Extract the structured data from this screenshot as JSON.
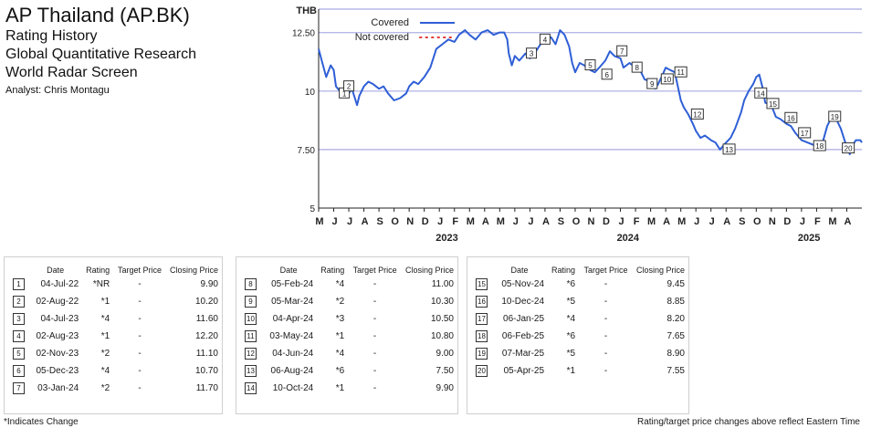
{
  "header": {
    "company": "AP Thailand (AP.BK)",
    "line1": "Rating History",
    "line2": "Global Quantitative Research",
    "line3": "World Radar Screen",
    "analyst": "Analyst: Chris Montagu"
  },
  "chart_data": {
    "type": "line",
    "y_unit_label": "THB",
    "ylim": [
      5,
      13.5
    ],
    "yticks": [
      "5",
      "7.50",
      "10",
      "12.50"
    ],
    "x_months": [
      "M",
      "J",
      "J",
      "A",
      "S",
      "O",
      "N",
      "D",
      "J",
      "F",
      "M",
      "A",
      "M",
      "J",
      "J",
      "A",
      "S",
      "O",
      "N",
      "D",
      "J",
      "F",
      "M",
      "A",
      "M",
      "J",
      "J",
      "A",
      "S",
      "O",
      "N",
      "D",
      "J",
      "F",
      "M",
      "A"
    ],
    "x_years": [
      {
        "label": "2023",
        "month_index": 8
      },
      {
        "label": "2024",
        "month_index": 20
      },
      {
        "label": "2025",
        "month_index": 32
      }
    ],
    "start_date": "2022-05-01",
    "legend": {
      "covered": "Covered",
      "not_covered": "Not covered"
    },
    "colors": {
      "line": "#2f5fd6",
      "not_covered": "#e23b3b",
      "grid": "#b7b9e8"
    },
    "series": [
      {
        "name": "Covered",
        "points": [
          [
            0,
            11.8
          ],
          [
            0.25,
            11.2
          ],
          [
            0.5,
            10.6
          ],
          [
            0.8,
            11.1
          ],
          [
            1.0,
            10.9
          ],
          [
            1.15,
            10.2
          ],
          [
            1.4,
            10.0
          ],
          [
            1.7,
            9.9
          ],
          [
            2.0,
            9.9
          ],
          [
            2.2,
            10.1
          ],
          [
            2.4,
            9.7
          ],
          [
            2.55,
            9.4
          ],
          [
            2.7,
            9.8
          ],
          [
            3.0,
            10.2
          ],
          [
            3.3,
            10.4
          ],
          [
            3.6,
            10.3
          ],
          [
            4.0,
            10.1
          ],
          [
            4.3,
            10.2
          ],
          [
            4.6,
            9.9
          ],
          [
            5.0,
            9.6
          ],
          [
            5.4,
            9.7
          ],
          [
            5.8,
            9.9
          ],
          [
            6.0,
            10.2
          ],
          [
            6.3,
            10.4
          ],
          [
            6.6,
            10.3
          ],
          [
            7.0,
            10.6
          ],
          [
            7.4,
            11.0
          ],
          [
            7.8,
            11.8
          ],
          [
            8.2,
            12.0
          ],
          [
            8.6,
            12.2
          ],
          [
            9.0,
            12.1
          ],
          [
            9.3,
            12.4
          ],
          [
            9.7,
            12.6
          ],
          [
            10.0,
            12.4
          ],
          [
            10.4,
            12.2
          ],
          [
            10.8,
            12.5
          ],
          [
            11.2,
            12.6
          ],
          [
            11.6,
            12.4
          ],
          [
            12.0,
            12.5
          ],
          [
            12.3,
            12.5
          ],
          [
            12.5,
            12.2
          ],
          [
            12.6,
            11.6
          ],
          [
            12.8,
            11.1
          ],
          [
            13.0,
            11.5
          ],
          [
            13.3,
            11.3
          ],
          [
            13.7,
            11.6
          ],
          [
            14.0,
            11.4
          ],
          [
            14.3,
            11.6
          ],
          [
            14.5,
            11.8
          ],
          [
            14.7,
            12.0
          ],
          [
            15.0,
            12.2
          ],
          [
            15.4,
            12.3
          ],
          [
            15.7,
            12.0
          ],
          [
            16.0,
            12.6
          ],
          [
            16.3,
            12.4
          ],
          [
            16.6,
            11.9
          ],
          [
            16.8,
            11.2
          ],
          [
            17.0,
            10.8
          ],
          [
            17.3,
            11.2
          ],
          [
            17.6,
            11.1
          ],
          [
            18.0,
            10.9
          ],
          [
            18.3,
            10.8
          ],
          [
            18.6,
            11.0
          ],
          [
            19.0,
            11.3
          ],
          [
            19.3,
            11.7
          ],
          [
            19.6,
            11.5
          ],
          [
            20.0,
            11.4
          ],
          [
            20.2,
            11.0
          ],
          [
            20.6,
            11.2
          ],
          [
            21.0,
            11.0
          ],
          [
            21.3,
            10.9
          ],
          [
            21.6,
            10.5
          ],
          [
            22.0,
            10.4
          ],
          [
            22.3,
            10.1
          ],
          [
            22.5,
            10.3
          ],
          [
            22.8,
            10.7
          ],
          [
            23.0,
            11.0
          ],
          [
            23.3,
            10.9
          ],
          [
            23.6,
            10.8
          ],
          [
            23.8,
            10.2
          ],
          [
            24.0,
            9.6
          ],
          [
            24.2,
            9.3
          ],
          [
            24.5,
            9.0
          ],
          [
            24.8,
            8.6
          ],
          [
            25.0,
            8.3
          ],
          [
            25.3,
            8.0
          ],
          [
            25.6,
            8.1
          ],
          [
            26.0,
            7.9
          ],
          [
            26.3,
            7.8
          ],
          [
            26.6,
            7.5
          ],
          [
            27.0,
            7.8
          ],
          [
            27.3,
            8.0
          ],
          [
            27.6,
            8.4
          ],
          [
            28.0,
            9.1
          ],
          [
            28.2,
            9.6
          ],
          [
            28.5,
            10.0
          ],
          [
            28.8,
            10.3
          ],
          [
            29.0,
            10.6
          ],
          [
            29.2,
            10.7
          ],
          [
            29.4,
            10.2
          ],
          [
            29.6,
            9.5
          ],
          [
            30.0,
            9.4
          ],
          [
            30.3,
            8.9
          ],
          [
            30.6,
            8.8
          ],
          [
            31.0,
            8.6
          ],
          [
            31.3,
            8.5
          ],
          [
            31.6,
            8.2
          ],
          [
            32.0,
            7.9
          ],
          [
            32.4,
            7.8
          ],
          [
            32.8,
            7.7
          ],
          [
            33.0,
            7.7
          ],
          [
            33.4,
            7.8
          ],
          [
            33.7,
            8.5
          ],
          [
            34.0,
            8.9
          ],
          [
            34.3,
            8.8
          ],
          [
            34.6,
            8.4
          ],
          [
            34.8,
            8.0
          ],
          [
            35.0,
            7.6
          ],
          [
            35.2,
            7.3
          ],
          [
            35.4,
            7.7
          ],
          [
            35.6,
            7.9
          ],
          [
            35.9,
            7.9
          ],
          [
            36.0,
            7.8
          ]
        ]
      }
    ],
    "markers": [
      {
        "n": "1",
        "month": 1.7,
        "price": 9.9
      },
      {
        "n": "2",
        "month": 2.0,
        "price": 10.2
      },
      {
        "n": "3",
        "month": 14.1,
        "price": 11.6
      },
      {
        "n": "4",
        "month": 15.0,
        "price": 12.2
      },
      {
        "n": "5",
        "month": 18.0,
        "price": 11.1
      },
      {
        "n": "6",
        "month": 19.1,
        "price": 10.7
      },
      {
        "n": "7",
        "month": 20.1,
        "price": 11.7
      },
      {
        "n": "8",
        "month": 21.1,
        "price": 11.0
      },
      {
        "n": "9",
        "month": 22.1,
        "price": 10.3
      },
      {
        "n": "10",
        "month": 23.1,
        "price": 10.5
      },
      {
        "n": "11",
        "month": 24.0,
        "price": 10.8
      },
      {
        "n": "12",
        "month": 25.1,
        "price": 9.0
      },
      {
        "n": "13",
        "month": 27.2,
        "price": 7.5
      },
      {
        "n": "14",
        "month": 29.3,
        "price": 9.9
      },
      {
        "n": "15",
        "month": 30.1,
        "price": 9.45
      },
      {
        "n": "16",
        "month": 31.3,
        "price": 8.85
      },
      {
        "n": "17",
        "month": 32.2,
        "price": 8.2
      },
      {
        "n": "18",
        "month": 33.2,
        "price": 7.65
      },
      {
        "n": "19",
        "month": 34.2,
        "price": 8.9
      },
      {
        "n": "20",
        "month": 35.1,
        "price": 7.55
      }
    ]
  },
  "table_headers": {
    "date": "Date",
    "rating": "Rating",
    "target": "Target Price",
    "closing": "Closing Price"
  },
  "tables": [
    [
      {
        "n": "1",
        "date": "04-Jul-22",
        "rating": "*NR",
        "target": "-",
        "closing": "9.90"
      },
      {
        "n": "2",
        "date": "02-Aug-22",
        "rating": "*1",
        "target": "-",
        "closing": "10.20"
      },
      {
        "n": "3",
        "date": "04-Jul-23",
        "rating": "*4",
        "target": "-",
        "closing": "11.60"
      },
      {
        "n": "4",
        "date": "02-Aug-23",
        "rating": "*1",
        "target": "-",
        "closing": "12.20"
      },
      {
        "n": "5",
        "date": "02-Nov-23",
        "rating": "*2",
        "target": "-",
        "closing": "11.10"
      },
      {
        "n": "6",
        "date": "05-Dec-23",
        "rating": "*4",
        "target": "-",
        "closing": "10.70"
      },
      {
        "n": "7",
        "date": "03-Jan-24",
        "rating": "*2",
        "target": "-",
        "closing": "11.70"
      }
    ],
    [
      {
        "n": "8",
        "date": "05-Feb-24",
        "rating": "*4",
        "target": "-",
        "closing": "11.00"
      },
      {
        "n": "9",
        "date": "05-Mar-24",
        "rating": "*2",
        "target": "-",
        "closing": "10.30"
      },
      {
        "n": "10",
        "date": "04-Apr-24",
        "rating": "*3",
        "target": "-",
        "closing": "10.50"
      },
      {
        "n": "11",
        "date": "03-May-24",
        "rating": "*1",
        "target": "-",
        "closing": "10.80"
      },
      {
        "n": "12",
        "date": "04-Jun-24",
        "rating": "*4",
        "target": "-",
        "closing": "9.00"
      },
      {
        "n": "13",
        "date": "06-Aug-24",
        "rating": "*6",
        "target": "-",
        "closing": "7.50"
      },
      {
        "n": "14",
        "date": "10-Oct-24",
        "rating": "*1",
        "target": "-",
        "closing": "9.90"
      }
    ],
    [
      {
        "n": "15",
        "date": "05-Nov-24",
        "rating": "*6",
        "target": "-",
        "closing": "9.45"
      },
      {
        "n": "16",
        "date": "10-Dec-24",
        "rating": "*5",
        "target": "-",
        "closing": "8.85"
      },
      {
        "n": "17",
        "date": "06-Jan-25",
        "rating": "*4",
        "target": "-",
        "closing": "8.20"
      },
      {
        "n": "18",
        "date": "06-Feb-25",
        "rating": "*6",
        "target": "-",
        "closing": "7.65"
      },
      {
        "n": "19",
        "date": "07-Mar-25",
        "rating": "*5",
        "target": "-",
        "closing": "8.90"
      },
      {
        "n": "20",
        "date": "05-Apr-25",
        "rating": "*1",
        "target": "-",
        "closing": "7.55"
      }
    ]
  ],
  "footnote": "*Indicates Change",
  "disclaimer": "Rating/target price changes above reflect Eastern Time"
}
